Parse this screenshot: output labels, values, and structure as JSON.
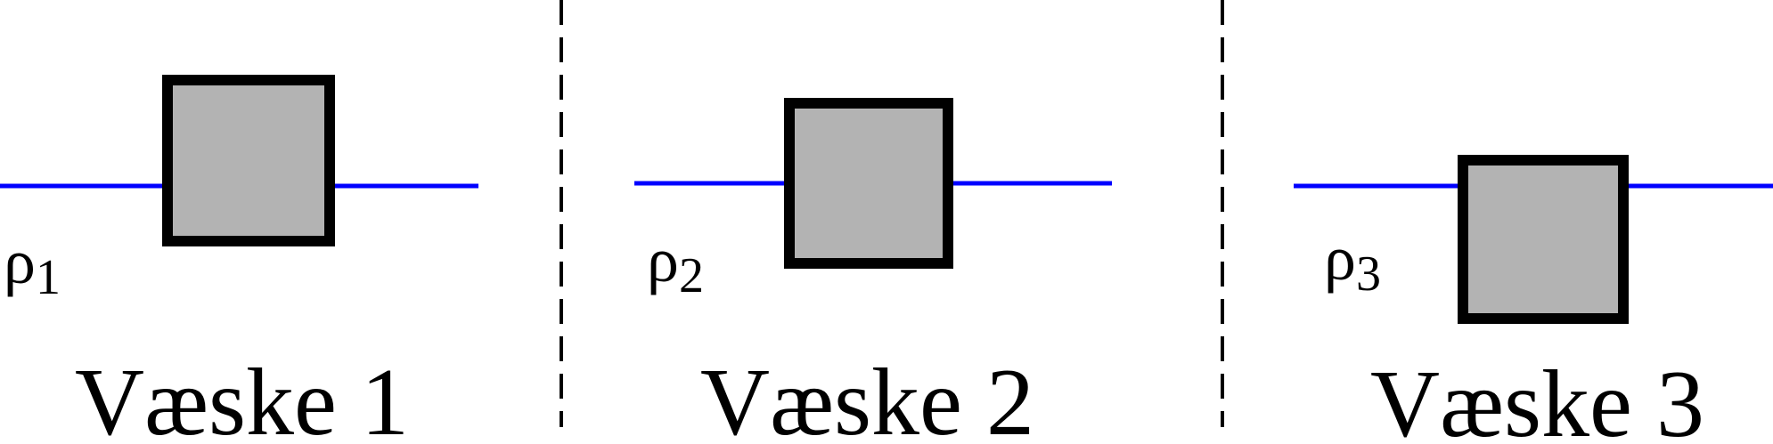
{
  "colors": {
    "surface_line": "#0000ff",
    "block_fill": "#b3b3b3",
    "block_stroke": "#000000",
    "divider": "#000000"
  },
  "panels": [
    {
      "density_symbol": "ρ",
      "density_subscript": "1",
      "caption": "Væske 1"
    },
    {
      "density_symbol": "ρ",
      "density_subscript": "2",
      "caption": "Væske 2"
    },
    {
      "density_symbol": "ρ",
      "density_subscript": "3",
      "caption": "Væske 3"
    }
  ]
}
